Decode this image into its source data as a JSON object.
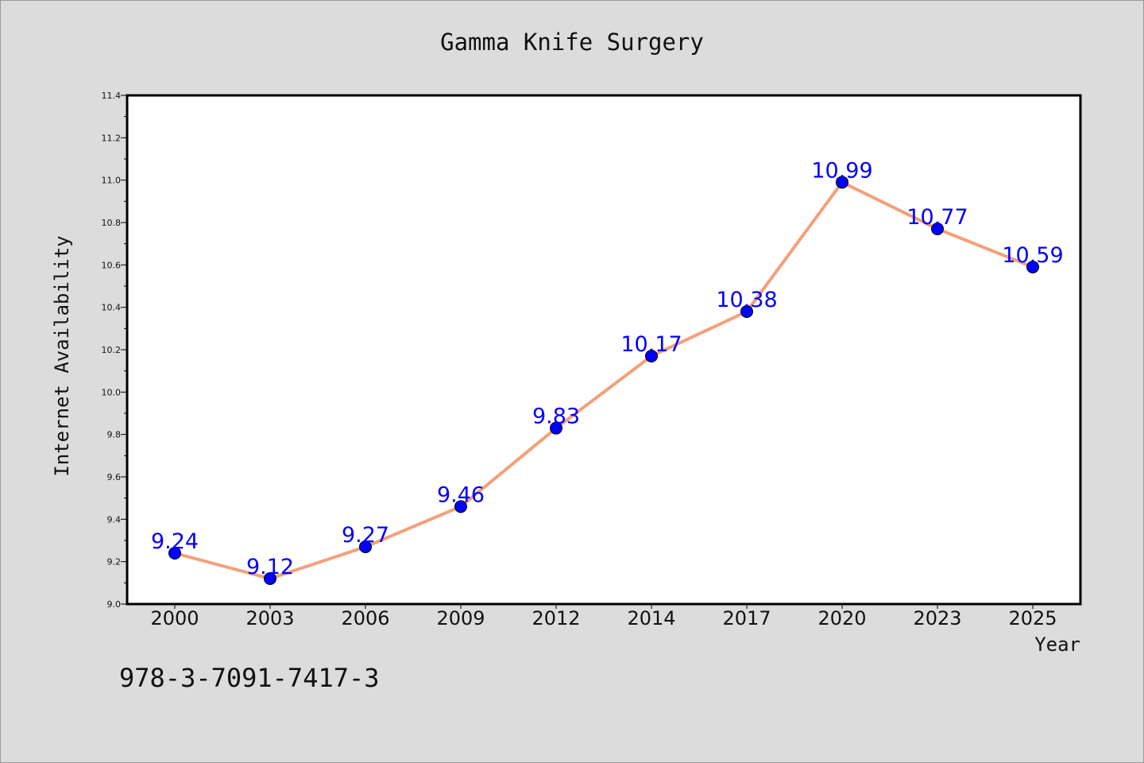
{
  "chart_data": {
    "type": "line",
    "title": "Gamma Knife Surgery",
    "xlabel": "Year",
    "ylabel": "Internet Availability",
    "categories": [
      "2000",
      "2003",
      "2006",
      "2009",
      "2012",
      "2014",
      "2017",
      "2020",
      "2023",
      "2025"
    ],
    "series": [
      {
        "values": [
          9.24,
          9.12,
          9.27,
          9.46,
          9.83,
          10.17,
          10.38,
          10.99,
          10.77,
          10.59
        ],
        "line_color": "#f4a07a",
        "marker_color": "#0000ff"
      }
    ],
    "data_labels": [
      "9.24",
      "9.12",
      "9.27",
      "9.46",
      "9.83",
      "10.17",
      "10.38",
      "10.99",
      "10.77",
      "10.59"
    ],
    "data_label_color": "#0000ff",
    "ylim": [
      9.0,
      11.4
    ],
    "yticks": [
      "9.0",
      "9.2",
      "9.4",
      "9.6",
      "9.8",
      "10.0",
      "10.2",
      "10.4",
      "10.6",
      "10.8",
      "11.0",
      "11.2",
      "11.4"
    ],
    "grid": false,
    "legend": "none"
  },
  "annotation": "978-3-7091-7417-3",
  "colors": {
    "background": "#dcdcdc",
    "plot_background": "#ffffff",
    "axis": "#000000"
  }
}
